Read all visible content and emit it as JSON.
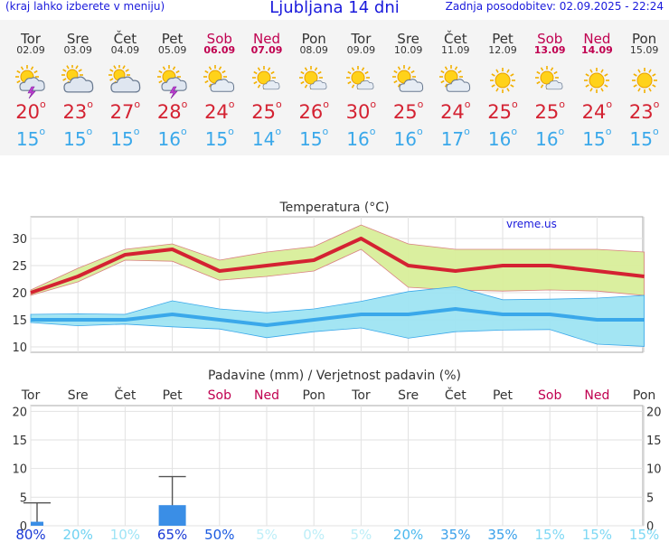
{
  "header": {
    "left_note": "(kraj lahko izberete v meniju)",
    "title": "Ljubljana 14 dni",
    "updated": "Zadnja posodobitev: 02.09.2025 - 22:24"
  },
  "days": [
    {
      "name": "Tor",
      "date": "02.09",
      "icon": "thunderstorm-icon",
      "weekend": false,
      "tmax": "20",
      "tmin": "15"
    },
    {
      "name": "Sre",
      "date": "03.09",
      "icon": "cloudy-icon",
      "weekend": false,
      "tmax": "23",
      "tmin": "15"
    },
    {
      "name": "Čet",
      "date": "04.09",
      "icon": "cloudy-icon",
      "weekend": false,
      "tmax": "27",
      "tmin": "15"
    },
    {
      "name": "Pet",
      "date": "05.09",
      "icon": "thunderstorm-icon",
      "weekend": false,
      "tmax": "28",
      "tmin": "16"
    },
    {
      "name": "Sob",
      "date": "06.09",
      "icon": "partly-cloudy-icon",
      "weekend": true,
      "tmax": "24",
      "tmin": "15"
    },
    {
      "name": "Ned",
      "date": "07.09",
      "icon": "partly-sunny-icon",
      "weekend": true,
      "tmax": "25",
      "tmin": "14"
    },
    {
      "name": "Pon",
      "date": "08.09",
      "icon": "partly-sunny-icon",
      "weekend": false,
      "tmax": "26",
      "tmin": "15"
    },
    {
      "name": "Tor",
      "date": "09.09",
      "icon": "partly-sunny-icon",
      "weekend": false,
      "tmax": "30",
      "tmin": "16"
    },
    {
      "name": "Sre",
      "date": "10.09",
      "icon": "partly-cloudy-icon",
      "weekend": false,
      "tmax": "25",
      "tmin": "16"
    },
    {
      "name": "Čet",
      "date": "11.09",
      "icon": "partly-cloudy-icon",
      "weekend": false,
      "tmax": "24",
      "tmin": "17"
    },
    {
      "name": "Pet",
      "date": "12.09",
      "icon": "sunny-icon",
      "weekend": false,
      "tmax": "25",
      "tmin": "16"
    },
    {
      "name": "Sob",
      "date": "13.09",
      "icon": "partly-sunny-icon",
      "weekend": true,
      "tmax": "25",
      "tmin": "16"
    },
    {
      "name": "Ned",
      "date": "14.09",
      "icon": "sunny-icon",
      "weekend": true,
      "tmax": "24",
      "tmin": "15"
    },
    {
      "name": "Pon",
      "date": "15.09",
      "icon": "sunny-icon",
      "weekend": false,
      "tmax": "23",
      "tmin": "15"
    }
  ],
  "colors": {
    "max": "#d42232",
    "min": "#3aa8ea",
    "weekend": "#c00050",
    "precip": "#3a8ee6",
    "max_band": "#d8ee9a",
    "min_band": "#9ee4f2"
  },
  "chart_data": [
    {
      "type": "line",
      "title": "Temperatura",
      "unit": "(°C)",
      "watermark": "vreme.us",
      "ylim": [
        9,
        34
      ],
      "yticks": [
        10,
        15,
        20,
        25,
        30
      ],
      "series": [
        {
          "name": "max",
          "values": [
            20,
            23,
            27,
            28,
            24,
            25,
            26,
            30,
            25,
            24,
            25,
            25,
            24,
            23
          ],
          "upper": [
            20.5,
            24.5,
            28,
            29,
            26,
            27.5,
            28.5,
            32.5,
            29,
            28,
            28,
            28,
            28,
            27.5
          ],
          "lower": [
            19.5,
            22,
            26,
            25.8,
            22.3,
            23,
            24,
            28,
            21,
            20.5,
            20.3,
            20.5,
            20.3,
            19.5
          ]
        },
        {
          "name": "min",
          "values": [
            15,
            15,
            15,
            16,
            15,
            14,
            15,
            16,
            16,
            17,
            16,
            16,
            15,
            15
          ],
          "upper": [
            16,
            16.1,
            16,
            18.5,
            17,
            16.3,
            17,
            18.4,
            20.2,
            21.1,
            18.7,
            18.8,
            19,
            19.5
          ],
          "lower": [
            14.5,
            13.9,
            14.2,
            13.7,
            13.3,
            11.7,
            12.8,
            13.5,
            11.6,
            12.8,
            13.1,
            13.2,
            10.5,
            10.1
          ]
        }
      ]
    },
    {
      "type": "bar",
      "title": "Padavine (mm) / Verjetnost padavin (%)",
      "ylim": [
        0,
        21
      ],
      "yticks": [
        0,
        5,
        10,
        15,
        20
      ],
      "amount_mm": [
        0.7,
        0,
        0,
        3.6,
        0,
        0,
        0,
        0,
        0,
        0,
        0,
        0,
        0,
        0
      ],
      "amount_max_mm": [
        4,
        0,
        0,
        8.6,
        0,
        0,
        0,
        0,
        0,
        0,
        0,
        0,
        0,
        0
      ],
      "probability": [
        "80%",
        "20%",
        "10%",
        "65%",
        "50%",
        "5%",
        "0%",
        "5%",
        "20%",
        "35%",
        "35%",
        "15%",
        "15%",
        "15%"
      ],
      "probability_colors": [
        "#1a3ad6",
        "#6ed2f2",
        "#9ee4f6",
        "#1a3ad6",
        "#1a5ae0",
        "#bdeef8",
        "#bdeef8",
        "#bdeef8",
        "#4ab8ee",
        "#3aa0ea",
        "#3aa0ea",
        "#7ed8f4",
        "#7ed8f4",
        "#7ed8f4"
      ]
    }
  ]
}
